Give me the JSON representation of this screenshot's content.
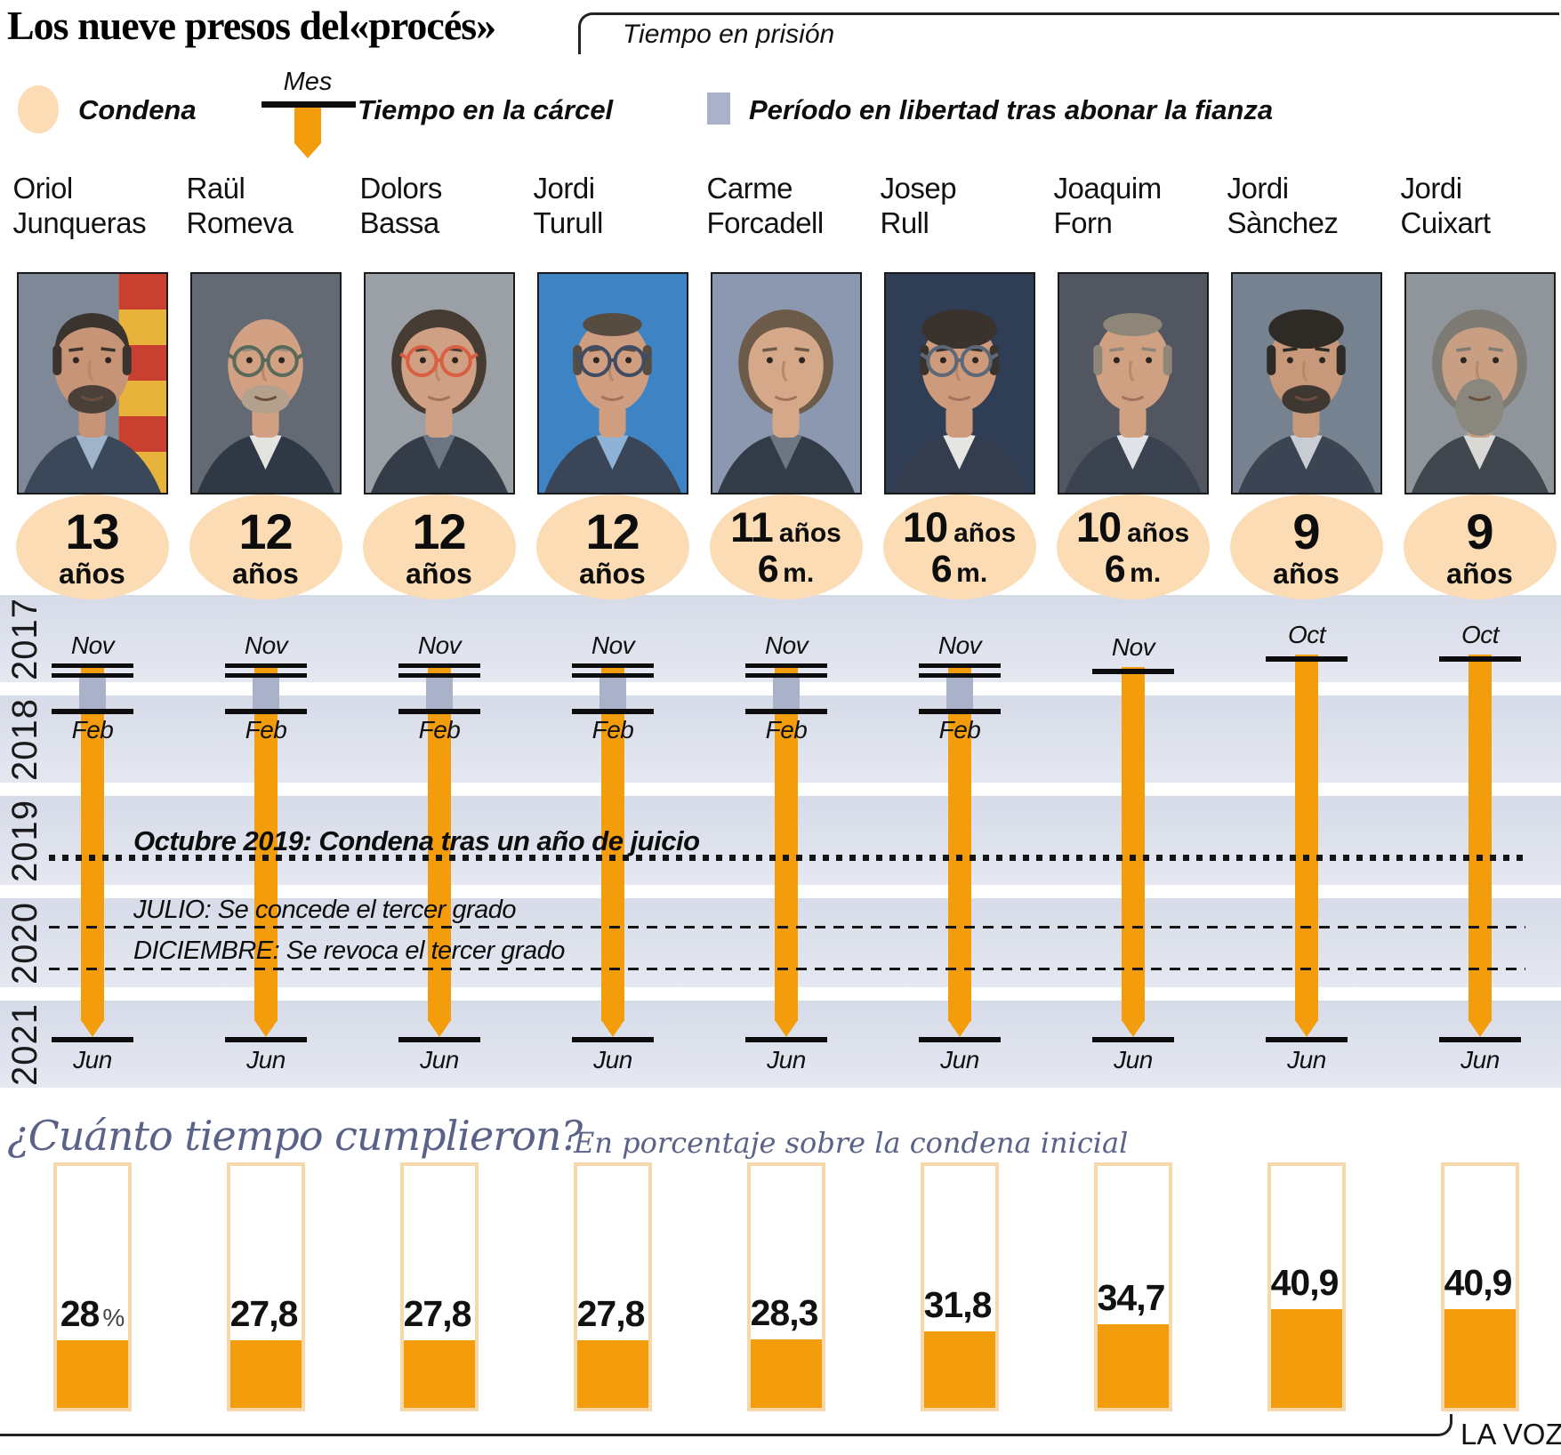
{
  "header": {
    "title": "Los nueve presos del«procés»",
    "bracket_label": "Tiempo en prisión"
  },
  "legend": {
    "condena": "Condena",
    "mes": "Mes",
    "carcel": "Tiempo en la cárcel",
    "fianza": "Período en libertad tras abonar la fianza"
  },
  "colors": {
    "orange": "#f39c0c",
    "peach_condena": "#fbdcb4",
    "fianza_gray": "#a9b2c8",
    "year_band": "#dde1ec",
    "heading_blue": "#5a6387",
    "bar_outline": "#f6d8ab"
  },
  "years": [
    "2017",
    "2018",
    "2019",
    "2020",
    "2021"
  ],
  "annotations": {
    "verdict": "Octubre 2019: Condena tras un año de juicio",
    "julio": "JULIO: Se concede el tercer grado",
    "diciembre": "DICIEMBRE: Se revoca el tercer grado"
  },
  "bottom": {
    "heading": "¿Cuánto tiempo cumplieron?",
    "subheading": "En porcentaje sobre la condena inicial",
    "credit": "LA VOZ"
  },
  "people": [
    {
      "first": "Oriol",
      "last": "Junqueras",
      "years": "13",
      "unit": "años",
      "months_num": "",
      "months_unit": "",
      "start": "Nov",
      "bail_end": "Feb",
      "end": "Jun",
      "pct": 28,
      "pct_label": "28",
      "pct_suffix": "%",
      "portrait": {
        "bg": "#7f8896",
        "flag": true,
        "skin": "#c89478",
        "hair": "#3b332d",
        "hairTop": "cap",
        "sideburns": true,
        "beard": true,
        "beardCol": "#4a4039",
        "coat": "#3b4859",
        "shirt": "#9fb4c9"
      }
    },
    {
      "first": "Raül",
      "last": "Romeva",
      "years": "12",
      "unit": "años",
      "months_num": "",
      "months_unit": "",
      "start": "Nov",
      "bail_end": "Feb",
      "end": "Jun",
      "pct": 27.8,
      "pct_label": "27,8",
      "pct_suffix": "",
      "portrait": {
        "bg": "#636a74",
        "skin": "#d2a183",
        "hair": "#9a8d7d",
        "hairTop": "none",
        "beard": true,
        "beardCol": "#b3a18d",
        "glasses": "#5a6a5a",
        "coat": "#2f3946",
        "shirt": "#e3e3df"
      }
    },
    {
      "first": "Dolors",
      "last": "Bassa",
      "years": "12",
      "unit": "años",
      "months_num": "",
      "months_unit": "",
      "start": "Nov",
      "bail_end": "Feb",
      "end": "Jun",
      "pct": 27.8,
      "pct_label": "27,8",
      "pct_suffix": "",
      "portrait": {
        "bg": "#9aa0a6",
        "skin": "#d0a084",
        "hair": "#463c33",
        "hairTop": "cap",
        "hairBack": true,
        "glasses": "#d95f43",
        "coat": "#333c47",
        "shirt": "#6b7685"
      }
    },
    {
      "first": "Jordi",
      "last": "Turull",
      "years": "12",
      "unit": "años",
      "months_num": "",
      "months_unit": "",
      "start": "Nov",
      "bail_end": "Feb",
      "end": "Jun",
      "pct": 27.8,
      "pct_label": "27,8",
      "pct_suffix": "",
      "portrait": {
        "bg": "#3e84c4",
        "skin": "#cf9d7f",
        "hair": "#564c42",
        "hairTop": "recede",
        "sideburns": true,
        "glasses": "#3f4c63",
        "coat": "#3a4557",
        "shirt": "#8fb3d6"
      }
    },
    {
      "first": "Carme",
      "last": "Forcadell",
      "years": "11",
      "unit": "años",
      "months_num": "6",
      "months_unit": "m.",
      "start": "Nov",
      "bail_end": "Feb",
      "end": "Jun",
      "pct": 28.3,
      "pct_label": "28,3",
      "pct_suffix": "",
      "portrait": {
        "bg": "#8c97b0",
        "skin": "#d6a88a",
        "hair": "#6d5b49",
        "hairTop": "cap",
        "hairBack": true,
        "coat": "#323b48",
        "shirt": "#6e7684"
      }
    },
    {
      "first": "Josep",
      "last": "Rull",
      "years": "10",
      "unit": "años",
      "months_num": "6",
      "months_unit": "m.",
      "start": "Nov",
      "bail_end": "Feb",
      "end": "Jun",
      "pct": 31.8,
      "pct_label": "31,8",
      "pct_suffix": "",
      "portrait": {
        "bg": "#2f3e54",
        "skin": "#cd9a7c",
        "hair": "#3a322c",
        "hairTop": "full",
        "sideburns": true,
        "glasses": "#5c6878",
        "coat": "#333d4d",
        "shirt": "#e6e6e2"
      }
    },
    {
      "first": "Joaquim",
      "last": "Forn",
      "years": "10",
      "unit": "años",
      "months_num": "6",
      "months_unit": "m.",
      "start": "Nov",
      "bail_end": "",
      "end": "Jun",
      "pct": 34.7,
      "pct_label": "34,7",
      "pct_suffix": "",
      "portrait": {
        "bg": "#515660",
        "skin": "#cfa082",
        "hair": "#8f867a",
        "hairTop": "recede",
        "sideburns": true,
        "coat": "#3a434f",
        "shirt": "#dfe2e6"
      }
    },
    {
      "first": "Jordi",
      "last": "Sànchez",
      "years": "9",
      "unit": "años",
      "months_num": "",
      "months_unit": "",
      "start": "Oct",
      "bail_end": "",
      "end": "Jun",
      "pct": 40.9,
      "pct_label": "40,9",
      "pct_suffix": "",
      "portrait": {
        "bg": "#76828f",
        "skin": "#c7987a",
        "hair": "#2e2a26",
        "hairTop": "full",
        "sideburns": true,
        "beard": true,
        "beardCol": "#3f3731",
        "coat": "#3b4452",
        "shirt": "#c8cdd3"
      }
    },
    {
      "first": "Jordi",
      "last": "Cuixart",
      "years": "9",
      "unit": "años",
      "months_num": "",
      "months_unit": "",
      "start": "Oct",
      "bail_end": "",
      "end": "Jun",
      "pct": 40.9,
      "pct_label": "40,9",
      "pct_suffix": "",
      "portrait": {
        "bg": "#8f959b",
        "skin": "#c89f83",
        "hair": "#7e7b75",
        "hairTop": "cap",
        "hairBack": true,
        "beard": true,
        "beardLong": true,
        "beardCol": "#8a877f",
        "coat": "#40474f",
        "shirt": "#d8d8d4"
      }
    }
  ],
  "chart_data": [
    {
      "type": "timeline",
      "title": "Tiempo en prisión",
      "years": [
        2017,
        2018,
        2019,
        2020,
        2021
      ],
      "series": [
        {
          "name": "Oriol Junqueras",
          "condena": "13 años",
          "prison_start": "Nov 2017",
          "bail_period": "Nov 2017 - Feb 2018",
          "prison_end": "Jun 2021"
        },
        {
          "name": "Raül Romeva",
          "condena": "12 años",
          "prison_start": "Nov 2017",
          "bail_period": "Nov 2017 - Feb 2018",
          "prison_end": "Jun 2021"
        },
        {
          "name": "Dolors Bassa",
          "condena": "12 años",
          "prison_start": "Nov 2017",
          "bail_period": "Nov 2017 - Feb 2018",
          "prison_end": "Jun 2021"
        },
        {
          "name": "Jordi Turull",
          "condena": "12 años",
          "prison_start": "Nov 2017",
          "bail_period": "Nov 2017 - Feb 2018",
          "prison_end": "Jun 2021"
        },
        {
          "name": "Carme Forcadell",
          "condena": "11 años 6 m.",
          "prison_start": "Nov 2017",
          "bail_period": "Nov 2017 - Feb 2018",
          "prison_end": "Jun 2021"
        },
        {
          "name": "Josep Rull",
          "condena": "10 años 6 m.",
          "prison_start": "Nov 2017",
          "bail_period": "Nov 2017 - Feb 2018",
          "prison_end": "Jun 2021"
        },
        {
          "name": "Joaquim Forn",
          "condena": "10 años 6 m.",
          "prison_start": "Nov 2017",
          "bail_period": null,
          "prison_end": "Jun 2021"
        },
        {
          "name": "Jordi Sànchez",
          "condena": "9 años",
          "prison_start": "Oct 2017",
          "bail_period": null,
          "prison_end": "Jun 2021"
        },
        {
          "name": "Jordi Cuixart",
          "condena": "9 años",
          "prison_start": "Oct 2017",
          "bail_period": null,
          "prison_end": "Jun 2021"
        }
      ],
      "events": [
        {
          "year": 2019,
          "text": "Octubre 2019: Condena tras un año de juicio"
        },
        {
          "year": 2020,
          "text": "JULIO: Se concede el tercer grado"
        },
        {
          "year": 2020,
          "text": "DICIEMBRE: Se revoca el tercer grado"
        }
      ]
    },
    {
      "type": "bar",
      "title": "¿Cuánto tiempo cumplieron?",
      "ylabel": "En porcentaje sobre la condena inicial",
      "categories": [
        "Oriol Junqueras",
        "Raül Romeva",
        "Dolors Bassa",
        "Jordi Turull",
        "Carme Forcadell",
        "Josep Rull",
        "Joaquim Forn",
        "Jordi Sànchez",
        "Jordi Cuixart"
      ],
      "values": [
        28,
        27.8,
        27.8,
        27.8,
        28.3,
        31.8,
        34.7,
        40.9,
        40.9
      ],
      "ylim": [
        0,
        100
      ],
      "legend_position": "none",
      "grid": false
    }
  ]
}
